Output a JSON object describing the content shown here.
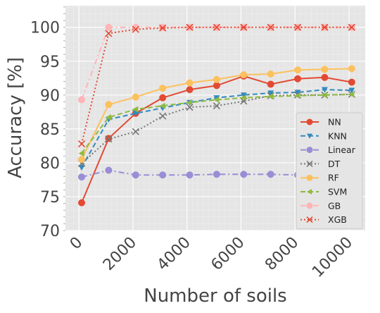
{
  "chart_data": {
    "type": "line",
    "xlabel": "Number of soils",
    "ylabel": "Accuracy [%]",
    "xlim": [
      -500,
      10600
    ],
    "ylim": [
      70,
      103.2
    ],
    "xticks": [
      0,
      2000,
      4000,
      6000,
      8000,
      10000
    ],
    "yticks": [
      70,
      75,
      80,
      85,
      90,
      95,
      100
    ],
    "grid": true,
    "legend": "right",
    "x": [
      100,
      1100,
      2100,
      3100,
      4100,
      5100,
      6100,
      7100,
      8100,
      9100,
      10100
    ],
    "series": [
      {
        "name": "NN",
        "color": "#e24a33",
        "dash": "solid",
        "marker": "circle",
        "values": [
          74.1,
          83.6,
          87.3,
          89.6,
          90.8,
          91.4,
          92.8,
          91.6,
          92.4,
          92.6,
          91.9
        ]
      },
      {
        "name": "KNN",
        "color": "#348abd",
        "dash": "dashed",
        "marker": "triangle-down",
        "values": [
          79.3,
          86.4,
          87.3,
          88.1,
          88.9,
          89.6,
          90.0,
          90.3,
          90.4,
          90.8,
          90.7
        ]
      },
      {
        "name": "Linear",
        "color": "#988ed5",
        "dash": "dashdot",
        "marker": "circle",
        "values": [
          77.9,
          78.9,
          78.2,
          78.2,
          78.2,
          78.3,
          78.3,
          78.3,
          78.2,
          78.3,
          78.3
        ]
      },
      {
        "name": "DT",
        "color": "#777777",
        "dash": "dotted",
        "marker": "x",
        "values": [
          79.9,
          83.5,
          84.6,
          86.9,
          88.2,
          88.4,
          89.1,
          89.9,
          90.0,
          90.0,
          90.1
        ]
      },
      {
        "name": "RF",
        "color": "#fbc15e",
        "dash": "solid",
        "marker": "circle",
        "values": [
          80.5,
          88.6,
          89.7,
          91.0,
          91.8,
          92.3,
          93.0,
          93.1,
          93.7,
          93.8,
          93.9
        ]
      },
      {
        "name": "SVM",
        "color": "#8eba42",
        "dash": "dashed",
        "marker": "triangle-left",
        "values": [
          81.4,
          86.7,
          87.9,
          88.4,
          88.9,
          89.3,
          89.6,
          89.8,
          89.9,
          90.0,
          90.1
        ]
      },
      {
        "name": "GB",
        "color": "#ffb5b8",
        "dash": "dashdot",
        "marker": "circle",
        "values": [
          89.3,
          100.0,
          100.0,
          100.0,
          100.0,
          100.0,
          100.0,
          100.0,
          100.0,
          100.0,
          100.0
        ]
      },
      {
        "name": "XGB",
        "color": "#e24a33",
        "dash": "dotted",
        "marker": "x",
        "values": [
          82.8,
          99.1,
          99.7,
          99.9,
          100.0,
          100.0,
          100.0,
          100.0,
          100.0,
          100.0,
          100.0
        ]
      }
    ]
  }
}
